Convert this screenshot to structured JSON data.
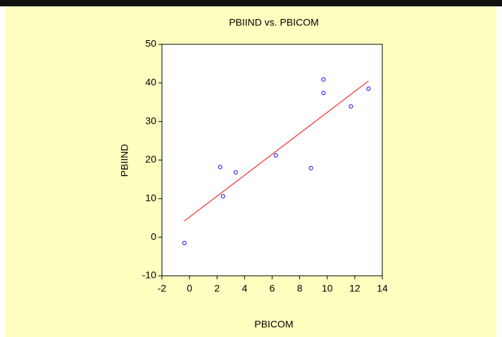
{
  "chart_data": {
    "type": "scatter",
    "title": "PBIIND vs. PBICOM",
    "x_label": "PBICOM",
    "y_label": "PBIIND",
    "series": [
      {
        "name": "PBIIND",
        "color": "#0000ff",
        "x": [
          -0.37,
          2.23,
          2.44,
          3.36,
          6.27,
          8.82,
          9.73,
          9.73,
          11.72,
          13.0
        ],
        "values": [
          -1.5,
          18.2,
          10.6,
          16.8,
          21.2,
          17.9,
          40.9,
          37.4,
          33.9,
          38.5
        ]
      }
    ],
    "fit_line": {
      "color": "#ff0000",
      "x": [
        -0.37,
        13.0
      ],
      "values": [
        4.2,
        40.5
      ]
    },
    "xlim": [
      -2,
      14
    ],
    "xticks": [
      -2,
      0,
      2,
      4,
      6,
      8,
      10,
      12,
      14
    ],
    "ylim": [
      -10,
      50
    ],
    "yticks": [
      -10,
      0,
      10,
      20,
      30,
      40,
      50
    ],
    "background": "#ffffc0"
  }
}
